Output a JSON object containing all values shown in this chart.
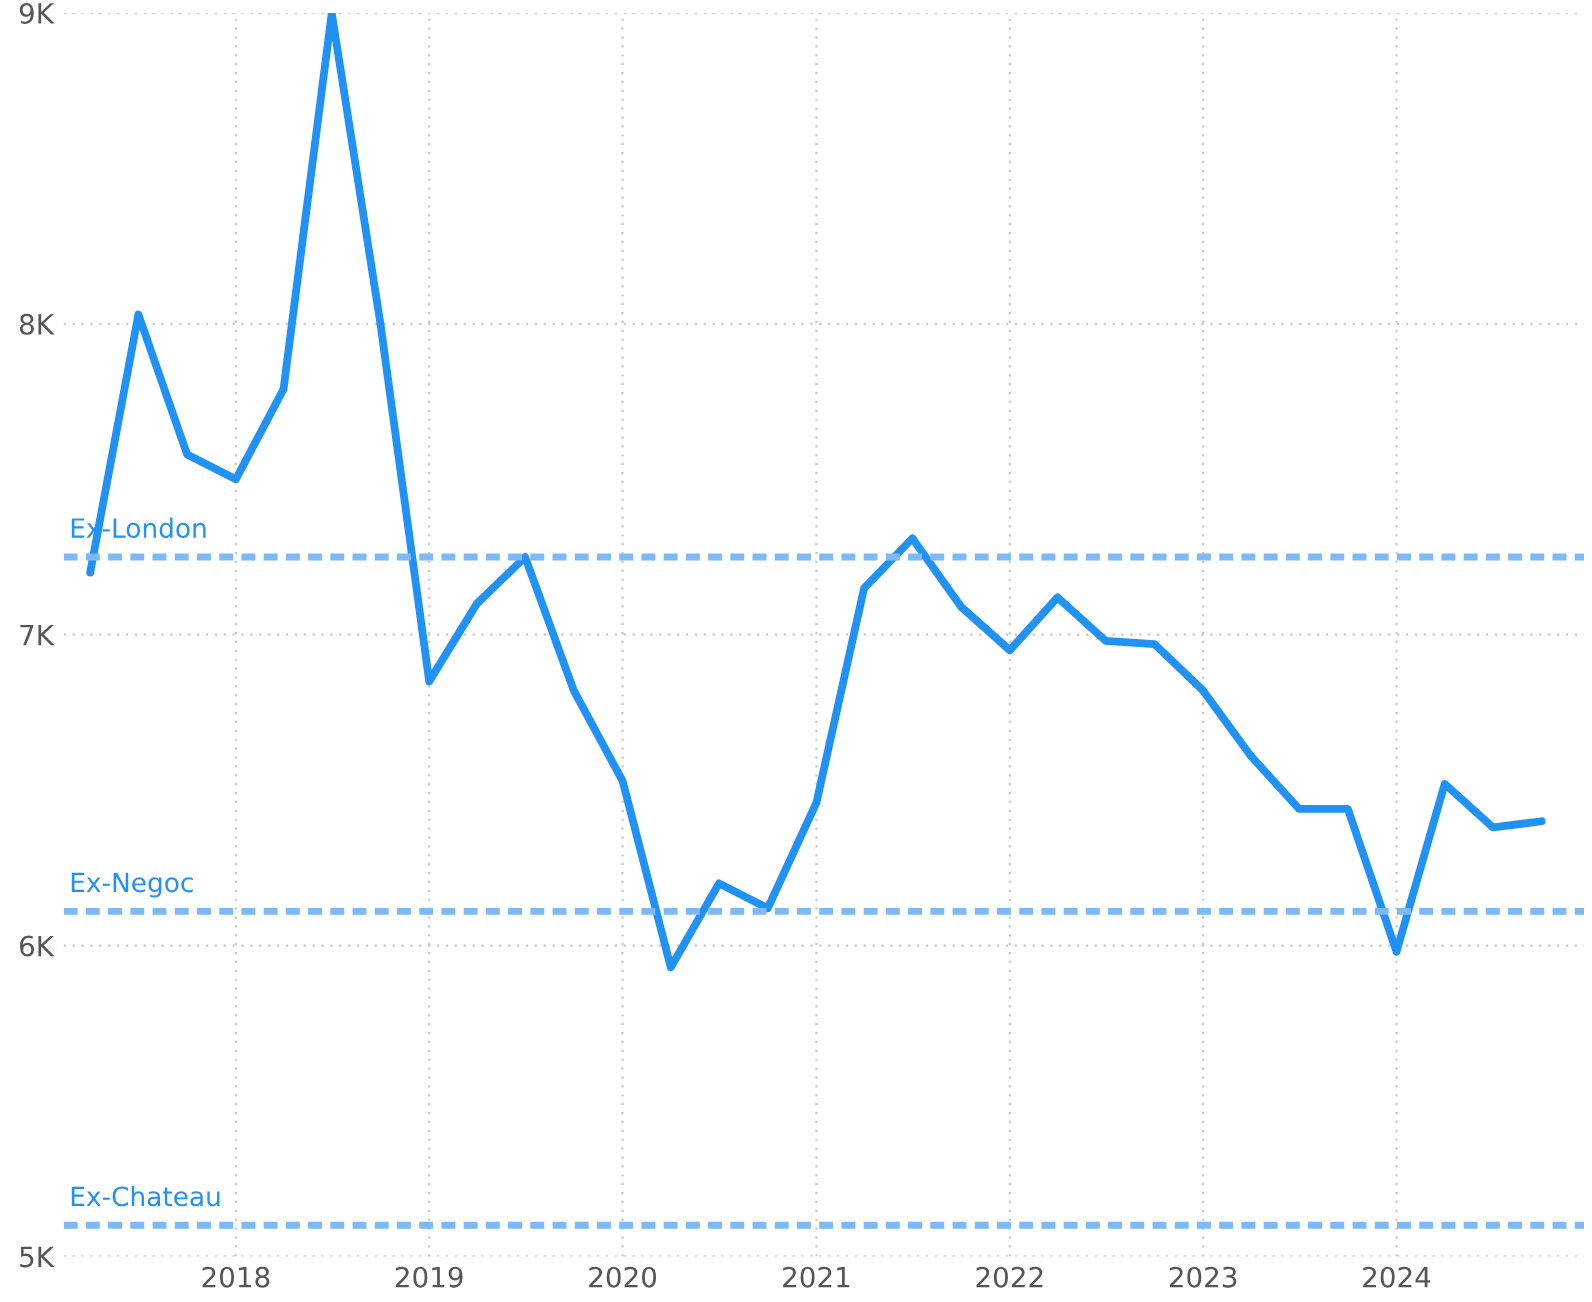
{
  "chart_data": {
    "type": "line",
    "x": [
      "2017-04",
      "2017-07",
      "2017-10",
      "2018-01",
      "2018-04",
      "2018-07",
      "2018-10",
      "2019-01",
      "2019-04",
      "2019-07",
      "2019-10",
      "2020-01",
      "2020-04",
      "2020-07",
      "2020-10",
      "2021-01",
      "2021-04",
      "2021-07",
      "2021-10",
      "2022-01",
      "2022-04",
      "2022-07",
      "2022-10",
      "2023-01",
      "2023-04",
      "2023-07",
      "2023-10",
      "2024-01",
      "2024-04",
      "2024-07",
      "2024-10"
    ],
    "series": [
      {
        "color": "#2192f5",
        "values": [
          7200,
          8030,
          7580,
          7500,
          7790,
          9000,
          8000,
          6850,
          7100,
          7250,
          6820,
          6530,
          5930,
          6200,
          6120,
          6460,
          7150,
          7310,
          7090,
          6950,
          7120,
          6980,
          6970,
          6820,
          6610,
          6440,
          6440,
          5980,
          6520,
          6380,
          6400
        ]
      }
    ],
    "xlim": [
      "2017-02-10",
      "2024-12-20"
    ],
    "xticks": [
      "2018",
      "2019",
      "2020",
      "2021",
      "2022",
      "2023",
      "2024"
    ],
    "ylim": [
      5000,
      9000
    ],
    "yticks": [
      {
        "value": 5000,
        "label": "5K"
      },
      {
        "value": 6000,
        "label": "6K"
      },
      {
        "value": 7000,
        "label": "7K"
      },
      {
        "value": 8000,
        "label": "8K"
      },
      {
        "value": 9000,
        "label": "9K"
      }
    ],
    "ref_lines": [
      {
        "axis": "y",
        "value": 7250,
        "label": "Ex-London",
        "color": "#7db8f7",
        "line_style": "dashed"
      },
      {
        "axis": "y",
        "value": 6110,
        "label": "Ex-Negoc",
        "color": "#7db8f7",
        "line_style": "dashed"
      },
      {
        "axis": "y",
        "value": 5100,
        "label": "Ex-Chateau",
        "color": "#7db8f7",
        "line_style": "dashed"
      }
    ],
    "grid": true,
    "legend": false,
    "marker": "none",
    "line_style": "solid"
  }
}
